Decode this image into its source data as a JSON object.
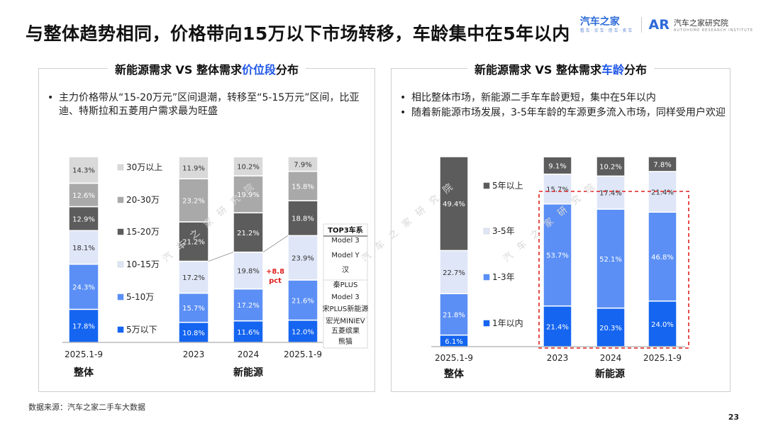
{
  "page": {
    "title": "与整体趋势相同，价格带向15万以下市场转移，车龄集中在5年以内",
    "logo": {
      "brand": "汽车之家",
      "brand_sub": "看车·买车·用车·卖车",
      "ar": "AR",
      "institute": "汽车之家研究院",
      "institute_sub": "AUTOHOME RESEARCH INSTITUTE"
    },
    "watermark": "汽车之家研究院",
    "footer": "数据来源：汽车之家二手车大数据",
    "page_number": "23"
  },
  "left_panel": {
    "title_prefix": "新能源需求 VS 整体需求",
    "title_highlight": "价位段",
    "title_suffix": "分布",
    "bullets": [
      "主力价格带从“15-20万元”区间退潮，转移至“5-15万元”区间，比亚迪、特斯拉和五菱用户需求最为旺盛"
    ],
    "annotation": {
      "line1": "+8.8",
      "line2": "pct"
    },
    "top3": {
      "header": "TOP3车系",
      "items": [
        "Model 3",
        "Model Y",
        "汉",
        "秦PLUS",
        "Model 3",
        "宋PLUS新能源",
        "宏光MINIEV",
        "五菱缤果",
        "熊猫"
      ]
    }
  },
  "right_panel": {
    "title_prefix": "新能源需求 VS 整体需求",
    "title_highlight": "车龄",
    "title_suffix": "分布",
    "bullets": [
      "相比整体市场，新能源二手车车龄更短，集中在5年以内",
      "随着新能源市场发展，3-5年车龄的车源更多流入市场，同样受用户欢迎"
    ]
  },
  "chart_data": [
    {
      "type": "bar",
      "stacked": true,
      "categories": [
        "2025.1-9",
        "2023",
        "2024",
        "2025.1-9"
      ],
      "groups": [
        {
          "label": "整体",
          "categories": [
            0
          ]
        },
        {
          "label": "新能源",
          "categories": [
            1,
            2,
            3
          ]
        }
      ],
      "series": [
        {
          "name": "5万以下",
          "color": "#1565f0",
          "values": [
            17.8,
            10.8,
            11.6,
            12.0
          ]
        },
        {
          "name": "5-10万",
          "color": "#5b8ff5",
          "values": [
            24.3,
            15.7,
            17.2,
            21.6
          ]
        },
        {
          "name": "10-15万",
          "color": "#dfe6f7",
          "values": [
            18.1,
            17.2,
            19.8,
            23.9
          ]
        },
        {
          "name": "15-20万",
          "color": "#5c5c5c",
          "values": [
            12.9,
            21.2,
            21.2,
            18.8
          ]
        },
        {
          "name": "20-30万",
          "color": "#a9a9a9",
          "values": [
            12.6,
            23.2,
            19.9,
            15.8
          ]
        },
        {
          "name": "30万以上",
          "color": "#d9d9d9",
          "values": [
            14.3,
            11.9,
            10.2,
            7.9
          ]
        }
      ],
      "legend_position": "middle",
      "unit": "%"
    },
    {
      "type": "bar",
      "stacked": true,
      "categories": [
        "2025.1-9",
        "2023",
        "2024",
        "2025.1-9"
      ],
      "groups": [
        {
          "label": "整体",
          "categories": [
            0
          ]
        },
        {
          "label": "新能源",
          "categories": [
            1,
            2,
            3
          ]
        }
      ],
      "series": [
        {
          "name": "1年以内",
          "color": "#1565f0",
          "values": [
            6.1,
            21.4,
            20.3,
            24.0
          ]
        },
        {
          "name": "1-3年",
          "color": "#5b8ff5",
          "values": [
            21.8,
            53.7,
            52.1,
            46.8
          ]
        },
        {
          "name": "3-5年",
          "color": "#dfe6f7",
          "values": [
            22.7,
            15.7,
            17.4,
            21.4
          ]
        },
        {
          "name": "5年以上",
          "color": "#5c5c5c",
          "values": [
            49.4,
            9.1,
            10.2,
            7.8
          ]
        }
      ],
      "legend_position": "middle",
      "unit": "%"
    }
  ]
}
